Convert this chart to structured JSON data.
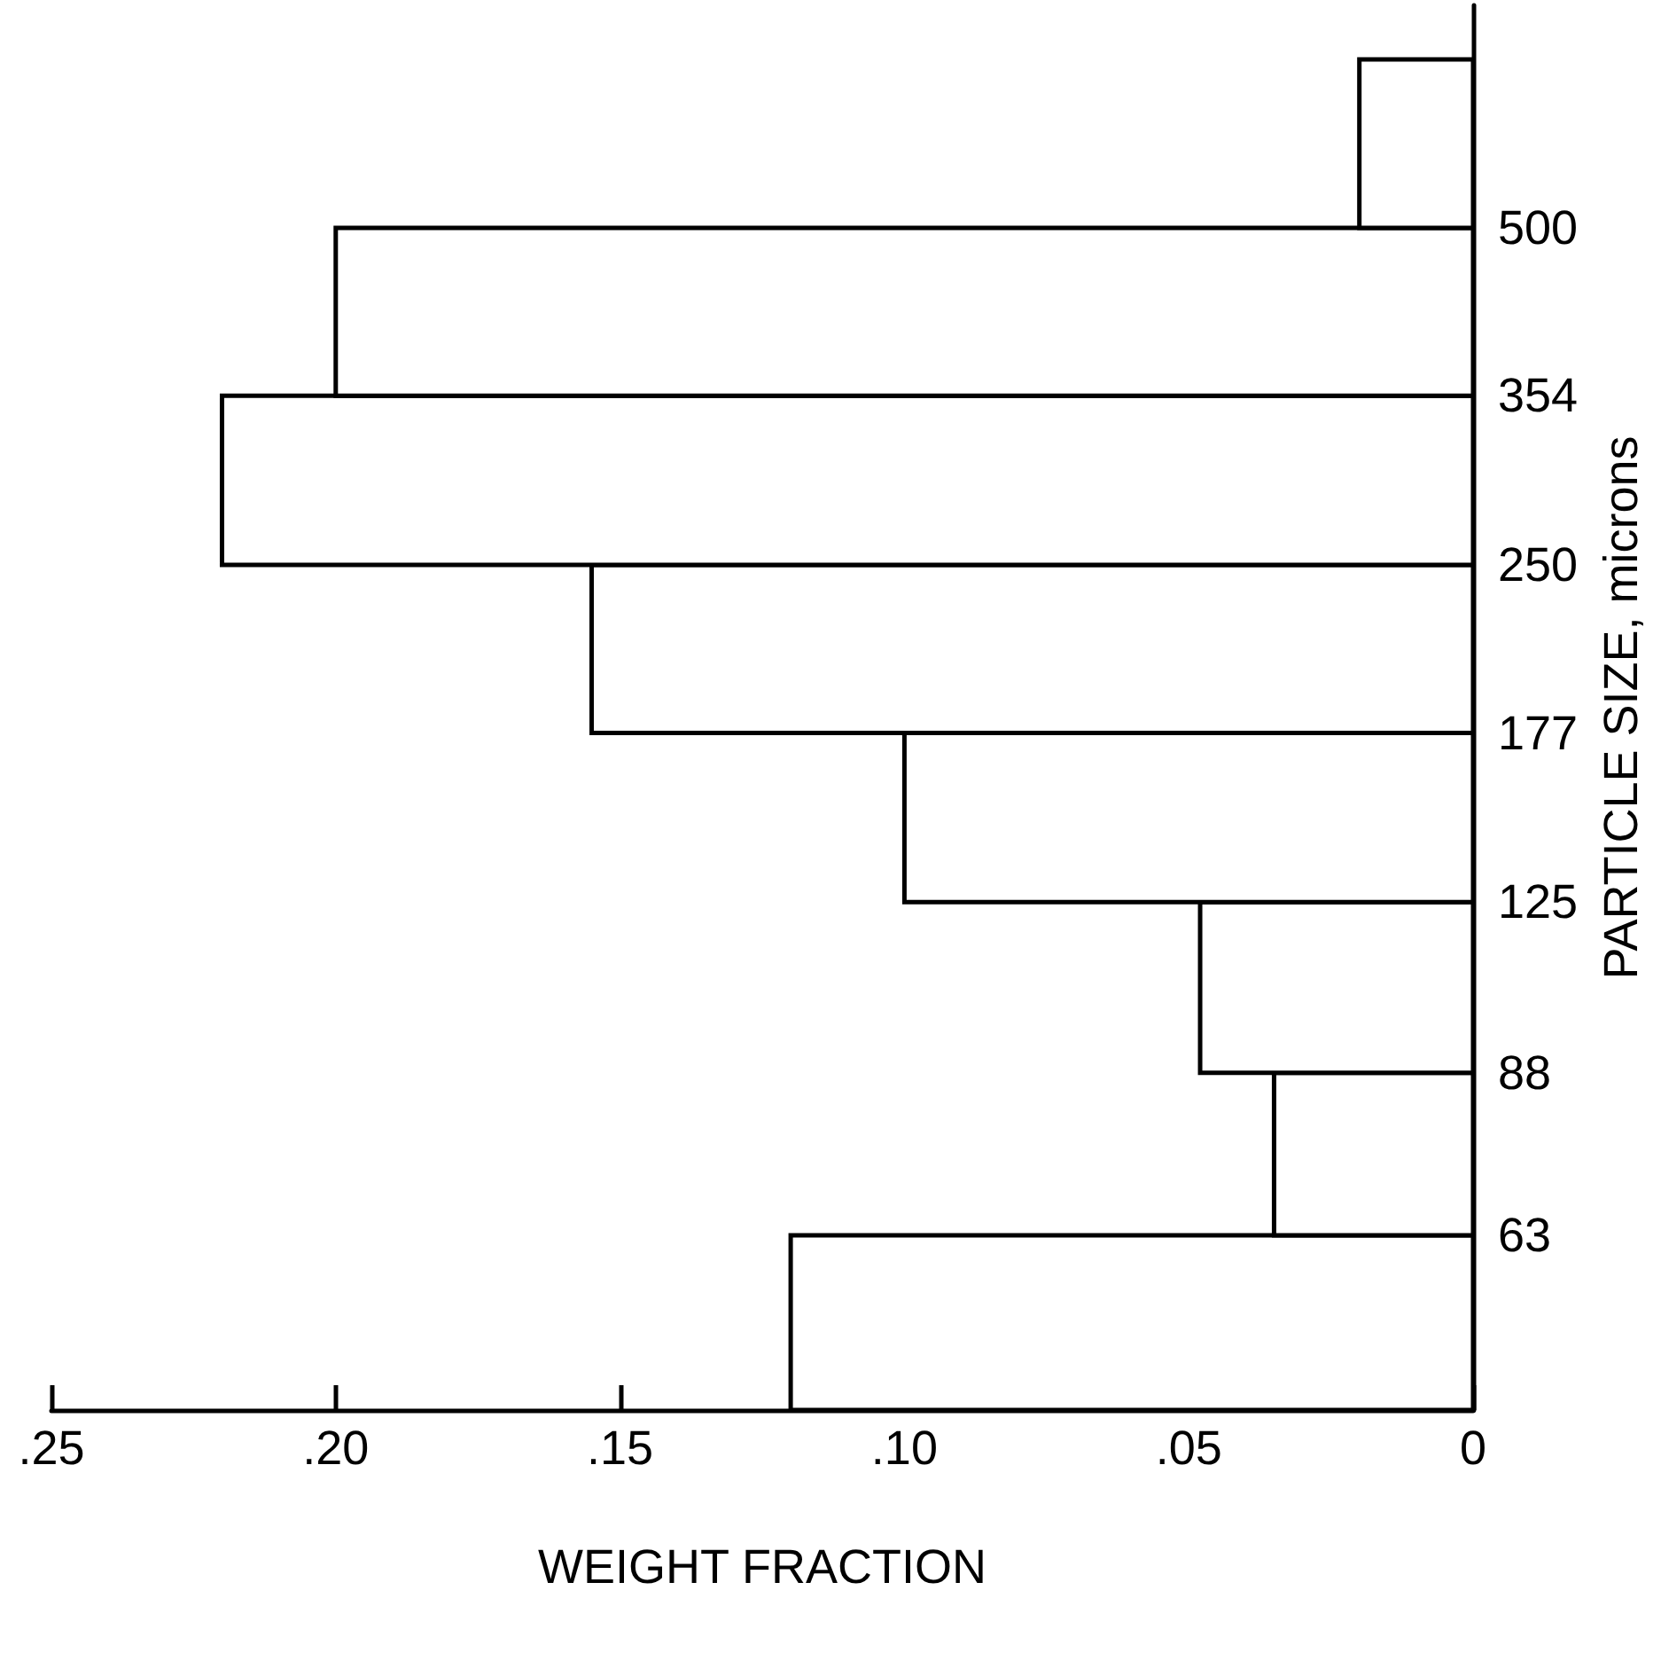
{
  "chart_data": {
    "type": "histogram",
    "orientation": "horizontal",
    "xlabel": "WEIGHT FRACTION",
    "ylabel": "PARTICLE SIZE, microns",
    "bins": [
      44,
      63,
      88,
      125,
      177,
      250,
      354,
      500,
      707
    ],
    "values": [
      0.12,
      0.035,
      0.048,
      0.1,
      0.155,
      0.22,
      0.2,
      0.02
    ],
    "color": "#ffffff",
    "log": "y",
    "grid": false,
    "xlim": [
      0.25,
      0
    ],
    "xticks": [
      0,
      {
        "value": 0.05,
        "label": ".05"
      },
      {
        "value": 0.1,
        "label": ".10"
      },
      {
        "value": 0.15,
        "label": ".15"
      },
      {
        "value": 0.2,
        "label": ".20"
      },
      {
        "value": 0.25,
        "label": ".25"
      }
    ],
    "ylim": [
      44,
      790
    ],
    "yticks": [
      63,
      88,
      125,
      177,
      250,
      354,
      500
    ]
  }
}
